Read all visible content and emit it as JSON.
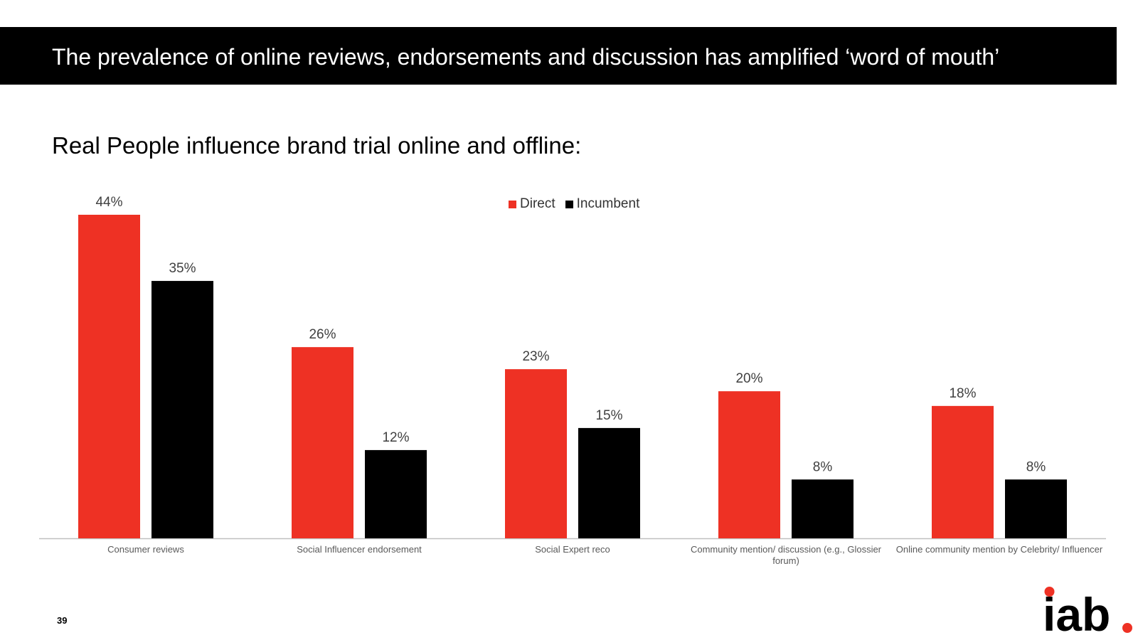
{
  "header": {
    "title": "The prevalence of online reviews, endorsements and discussion has amplified ‘word of mouth’"
  },
  "subtitle": "Real People influence brand trial online and offline:",
  "colors": {
    "direct": "#EE3124",
    "incumbent": "#000000",
    "axis": "#BFBFBF",
    "label": "#404040"
  },
  "legend": [
    {
      "label": "Direct"
    },
    {
      "label": "Incumbent"
    }
  ],
  "chart_data": {
    "type": "bar",
    "title": "",
    "xlabel": "",
    "ylabel": "",
    "ylim": [
      0,
      45
    ],
    "grid": false,
    "legend_position": "top-center",
    "categories": [
      [
        "Consumer reviews"
      ],
      [
        "Social Influencer endorsement"
      ],
      [
        "Social Expert reco"
      ],
      [
        "Community mention/ discussion (e.g., Glossier",
        "forum)"
      ],
      [
        "Online community mention by Celebrity/ Influencer"
      ]
    ],
    "series": [
      {
        "name": "Direct",
        "values": [
          44,
          26,
          23,
          20,
          18
        ],
        "labels": [
          "44%",
          "26%",
          "23%",
          "20%",
          "18%"
        ]
      },
      {
        "name": "Incumbent",
        "values": [
          35,
          12,
          15,
          8,
          8
        ],
        "labels": [
          "35%",
          "12%",
          "15%",
          "8%",
          "8%"
        ]
      }
    ]
  },
  "footer": {
    "page_number": "39",
    "logo_text": "iab"
  }
}
